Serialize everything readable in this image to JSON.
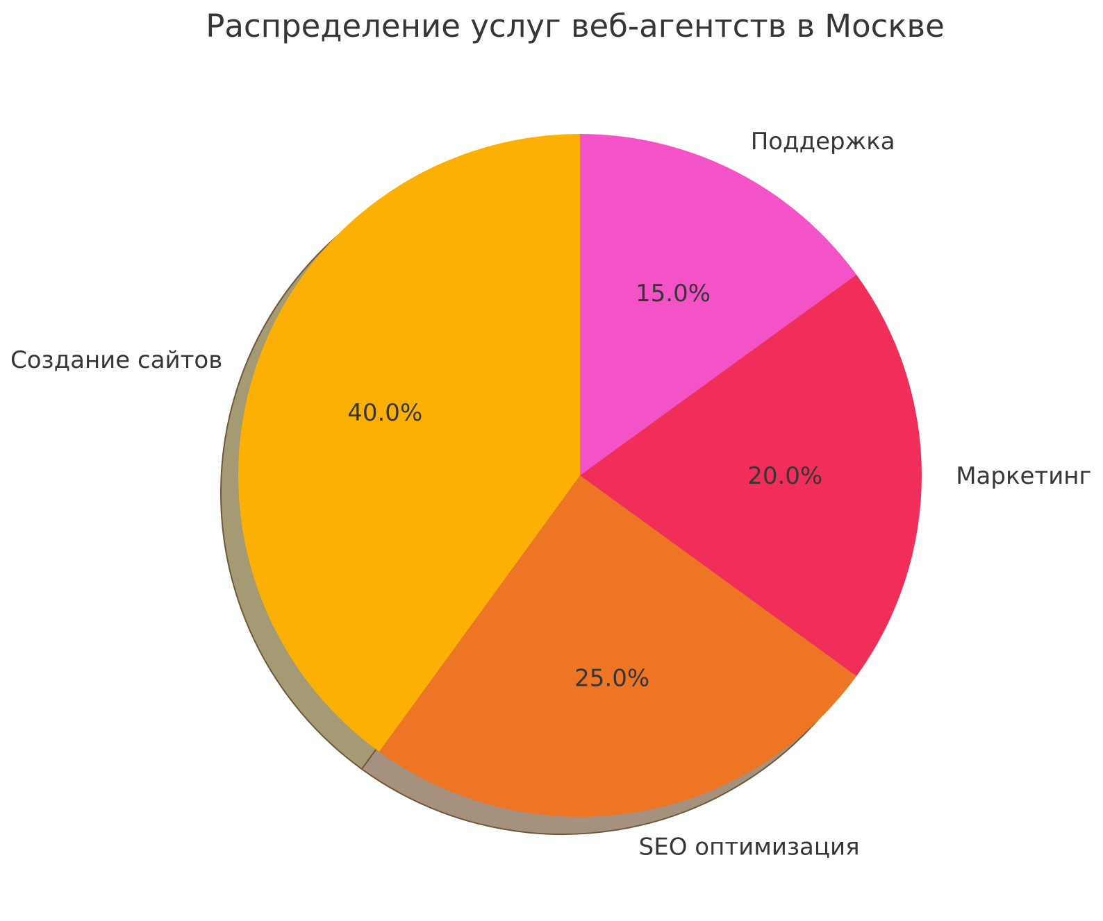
{
  "figure": {
    "background": "#ffffff"
  },
  "chart_data": {
    "type": "pie",
    "title": "Распределение услуг веб-агентств в Москве",
    "labels": [
      "Поддержка",
      "Маркетинг",
      "SEO оптимизация",
      "Создание сайтов"
    ],
    "values": [
      15.0,
      20.0,
      25.0,
      40.0
    ],
    "pct_labels": [
      "15.0%",
      "20.0%",
      "25.0%",
      "40.0%"
    ],
    "colors": [
      "#f353c6",
      "#f12e5a",
      "#ee7524",
      "#fcb004"
    ],
    "shadow_colors": [
      "#a88fa0",
      "#a6899b",
      "#a6907e",
      "#a49a74"
    ],
    "shadow_edge_color": "#6f573c",
    "text_color": "#363636",
    "start_angle": 90,
    "direction": "clockwise",
    "pct_distance": 0.6,
    "label_distance": 1.1,
    "shadow": true,
    "legend": "none",
    "grid": false
  }
}
